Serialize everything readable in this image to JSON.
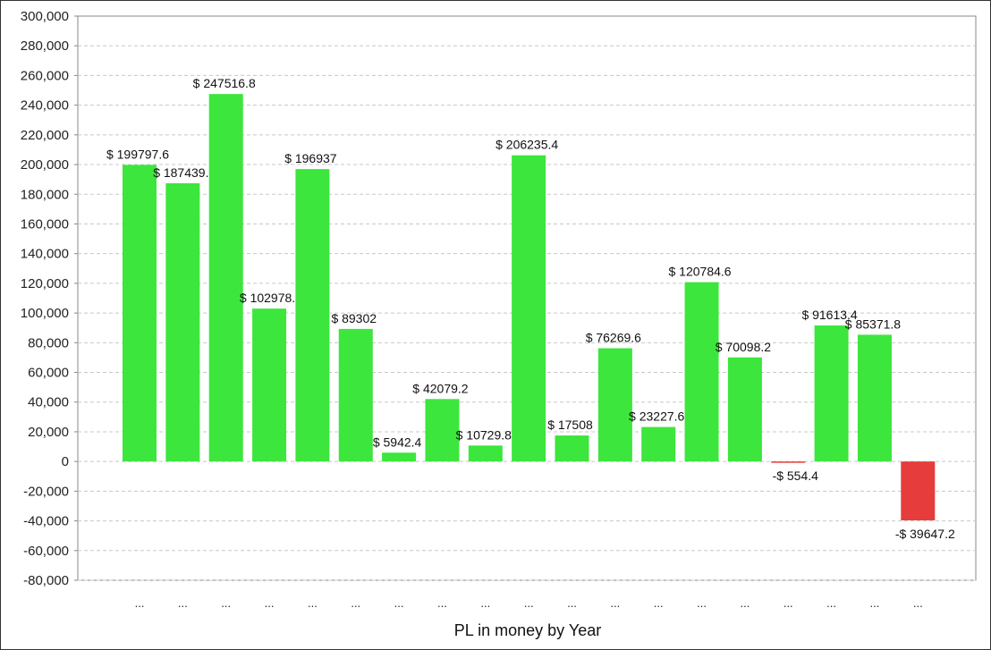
{
  "chart_data": {
    "type": "bar",
    "title": "",
    "xlabel": "PL in money by Year",
    "ylabel": "",
    "ylim": [
      -80000,
      300000
    ],
    "ytick_step": 20000,
    "yticks": [
      "300,000",
      "280,000",
      "260,000",
      "240,000",
      "220,000",
      "200,000",
      "180,000",
      "160,000",
      "140,000",
      "120,000",
      "100,000",
      "80,000",
      "60,000",
      "40,000",
      "20,000",
      "0",
      "-20,000",
      "-40,000",
      "-60,000",
      "-80,000"
    ],
    "grid": true,
    "categories": [
      "...",
      "...",
      "...",
      "...",
      "...",
      "...",
      "...",
      "...",
      "...",
      "...",
      "...",
      "...",
      "...",
      "...",
      "...",
      "...",
      "...",
      "...",
      "..."
    ],
    "values": [
      199797.6,
      187439,
      247516.8,
      102978,
      196937,
      89302,
      5942.4,
      42079.2,
      10729.8,
      206235.4,
      17508,
      76269.6,
      23227.6,
      120784.6,
      70098.2,
      -554.4,
      91613.4,
      85371.8,
      -39647.2
    ],
    "data_labels": [
      "$ 199797.6",
      "$ 187439.",
      "$ 247516.8",
      "$ 102978.",
      "$ 196937",
      "$ 89302",
      "$ 5942.4",
      "$ 42079.2",
      "$ 10729.8",
      "$ 206235.4",
      "$ 17508",
      "$ 76269.6",
      "$ 23227.6",
      "$ 120784.6",
      "$ 70098.2",
      "-$ 554.4",
      "$ 91613.4",
      "$ 85371.8",
      "-$ 39647.2"
    ],
    "positive_color": "#3ce63c",
    "negative_color": "#e63c3c"
  }
}
